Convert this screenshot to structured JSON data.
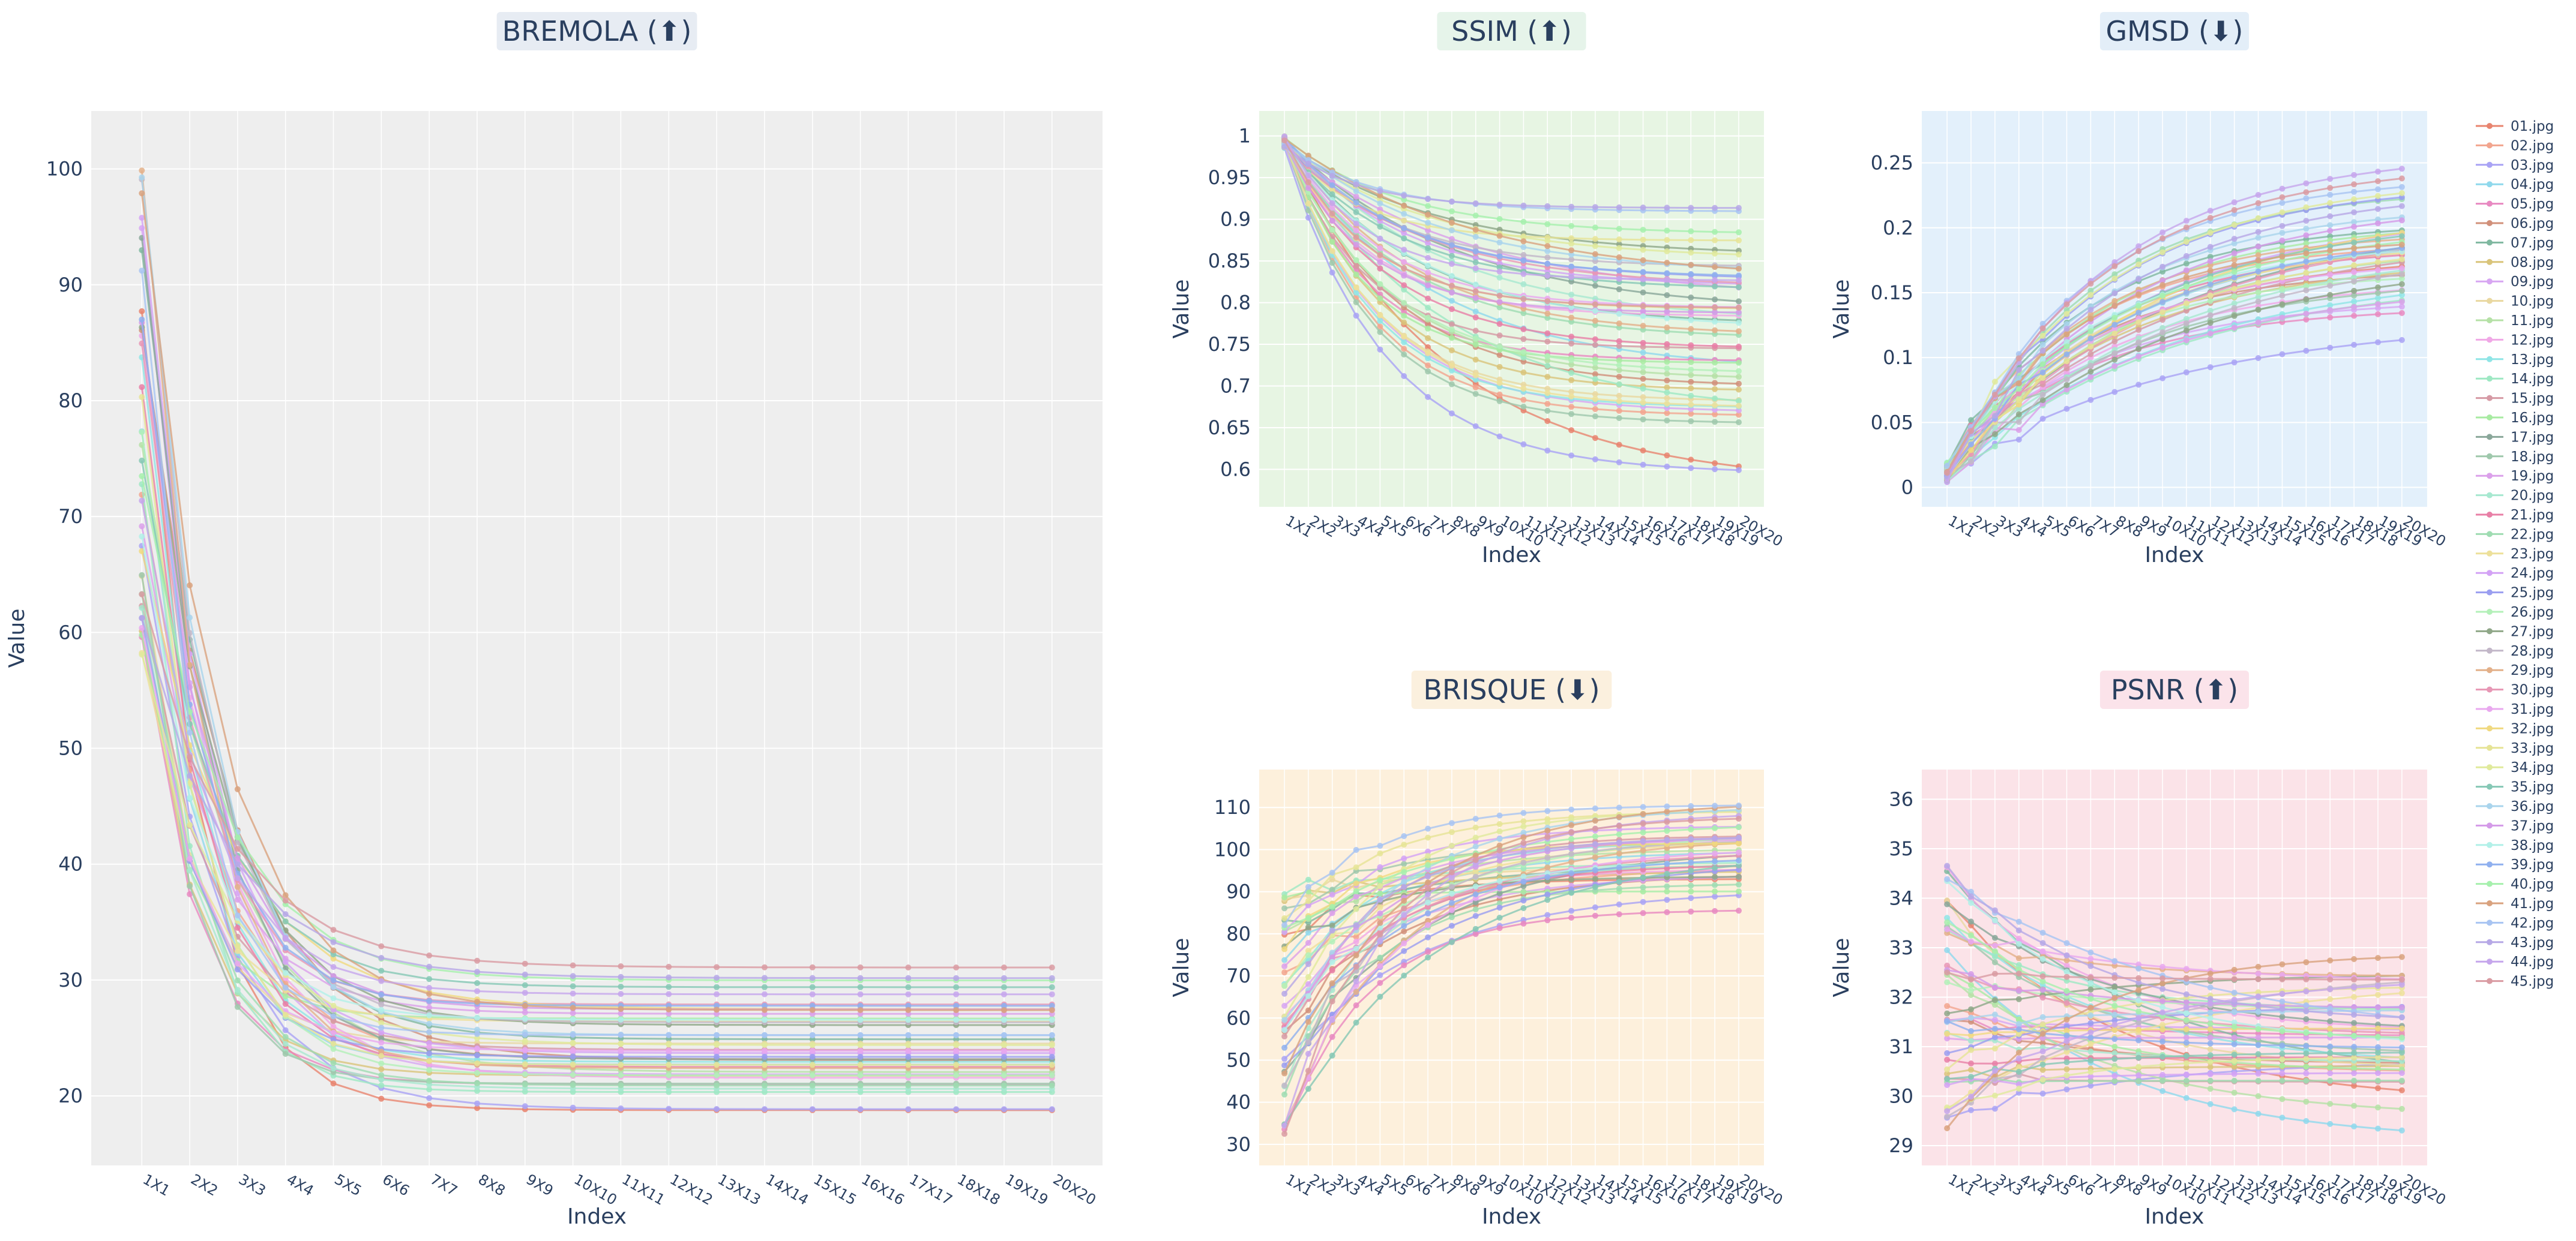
{
  "legend": {
    "items": [
      "01.jpg",
      "02.jpg",
      "03.jpg",
      "04.jpg",
      "05.jpg",
      "06.jpg",
      "07.jpg",
      "08.jpg",
      "09.jpg",
      "10.jpg",
      "11.jpg",
      "12.jpg",
      "13.jpg",
      "14.jpg",
      "15.jpg",
      "16.jpg",
      "17.jpg",
      "18.jpg",
      "19.jpg",
      "20.jpg",
      "21.jpg",
      "22.jpg",
      "23.jpg",
      "24.jpg",
      "25.jpg",
      "26.jpg",
      "27.jpg",
      "28.jpg",
      "29.jpg",
      "30.jpg",
      "31.jpg",
      "32.jpg",
      "33.jpg",
      "34.jpg",
      "35.jpg",
      "36.jpg",
      "37.jpg",
      "38.jpg",
      "39.jpg",
      "40.jpg",
      "41.jpg",
      "42.jpg",
      "43.jpg",
      "44.jpg",
      "45.jpg"
    ],
    "colors": [
      "#e8846f",
      "#f2a58e",
      "#a9a3f5",
      "#8fd8ec",
      "#e889c1",
      "#d1907a",
      "#7fb8a0",
      "#d9c47a",
      "#d7a6f2",
      "#e9d8a0",
      "#b5e1a6",
      "#f0a8e6",
      "#8fe5e6",
      "#9ee8c3",
      "#d69aa5",
      "#a8eba2",
      "#8aa79a",
      "#9fc8ac",
      "#dba0ea",
      "#a7e8d0",
      "#e87fa6",
      "#9fdcb2",
      "#ede09a",
      "#d3a2f5",
      "#9a9ef0",
      "#b3f0b8",
      "#8fa788",
      "#c2b7c8",
      "#e3b089",
      "#e797b5",
      "#e9a8ef",
      "#f0d980",
      "#e6e496",
      "#e0ea9c",
      "#86c8b5",
      "#a9d4ec",
      "#d49ae8",
      "#b2f0e8",
      "#8fb0ef",
      "#a6f0ad",
      "#d9a27e",
      "#a8c4f2",
      "#b6a8e6",
      "#c5a6ec",
      "#d99ba2"
    ]
  },
  "chart_data": [
    {
      "id": "bremola",
      "type": "line",
      "title": "BREMOLA (⬆)",
      "title_bg": "#e7ecf3",
      "plot_bg": "#eeeeee",
      "xlabel": "Index",
      "ylabel": "Value",
      "categories": [
        "1X1",
        "2X2",
        "3X3",
        "4X4",
        "5X5",
        "6X6",
        "7X7",
        "8X8",
        "9X9",
        "10X10",
        "11X11",
        "12X12",
        "13X13",
        "14X14",
        "15X15",
        "16X16",
        "17X17",
        "18X18",
        "19X19",
        "20X20"
      ],
      "ylim": [
        14,
        105
      ],
      "yticks": [
        20,
        30,
        40,
        50,
        60,
        70,
        80,
        90,
        100
      ],
      "series_shape": {
        "kind": "decay",
        "start_range": [
          57,
          100
        ],
        "end_range": [
          17.3,
          31.5
        ],
        "rate_range": [
          0.55,
          0.95
        ]
      }
    },
    {
      "id": "ssim",
      "type": "line",
      "title": "SSIM (⬆)",
      "title_bg": "#e6f4ea",
      "plot_bg": "#e7f5e3",
      "xlabel": "Index",
      "ylabel": "Value",
      "categories": [
        "1X1",
        "2X2",
        "3X3",
        "4X4",
        "5X5",
        "6X6",
        "7X7",
        "8X8",
        "9X9",
        "10X10",
        "11X11",
        "12X12",
        "13X13",
        "14X14",
        "15X15",
        "16X16",
        "17X17",
        "18X18",
        "19X19",
        "20X20"
      ],
      "ylim": [
        0.555,
        1.03
      ],
      "yticks": [
        0.6,
        0.65,
        0.7,
        0.75,
        0.8,
        0.85,
        0.9,
        0.95,
        1
      ],
      "series_shape": {
        "kind": "fall",
        "start_range": [
          0.985,
          1.0
        ],
        "end_range": [
          0.58,
          0.935
        ],
        "rate_range": [
          0.12,
          0.32
        ]
      }
    },
    {
      "id": "gmsd",
      "type": "line",
      "title": "GMSD (⬇)",
      "title_bg": "#e3eef8",
      "plot_bg": "#e3f0fb",
      "xlabel": "Index",
      "ylabel": "Value",
      "categories": [
        "1X1",
        "2X2",
        "3X3",
        "4X4",
        "5X5",
        "6X6",
        "7X7",
        "8X8",
        "9X9",
        "10X10",
        "11X11",
        "12X12",
        "13X13",
        "14X14",
        "15X15",
        "16X16",
        "17X17",
        "18X18",
        "19X19",
        "20X20"
      ],
      "ylim": [
        -0.015,
        0.29
      ],
      "yticks": [
        0,
        0.05,
        0.1,
        0.15,
        0.2,
        0.25
      ],
      "series_shape": {
        "kind": "rise",
        "start_range": [
          0.004,
          0.02
        ],
        "end_range": [
          0.12,
          0.27
        ],
        "rate_range": [
          0.1,
          0.18
        ]
      }
    },
    {
      "id": "brisque",
      "type": "line",
      "title": "BRISQUE (⬇)",
      "title_bg": "#fbf0de",
      "plot_bg": "#fdf0dc",
      "xlabel": "Index",
      "ylabel": "Value",
      "categories": [
        "1X1",
        "2X2",
        "3X3",
        "4X4",
        "5X5",
        "6X6",
        "7X7",
        "8X8",
        "9X9",
        "10X10",
        "11X11",
        "12X12",
        "13X13",
        "14X14",
        "15X15",
        "16X16",
        "17X17",
        "18X18",
        "19X19",
        "20X20"
      ],
      "ylim": [
        25,
        119
      ],
      "yticks": [
        30,
        40,
        50,
        60,
        70,
        80,
        90,
        100,
        110
      ],
      "series_shape": {
        "kind": "rise",
        "start_range": [
          31,
          90
        ],
        "end_range": [
          84,
          114
        ],
        "rate_range": [
          0.14,
          0.28
        ]
      }
    },
    {
      "id": "psnr",
      "type": "line",
      "title": "PSNR (⬆)",
      "title_bg": "#fbe3ea",
      "plot_bg": "#fbe3e8",
      "xlabel": "Index",
      "ylabel": "Value",
      "categories": [
        "1X1",
        "2X2",
        "3X3",
        "4X4",
        "5X5",
        "6X6",
        "7X7",
        "8X8",
        "9X9",
        "10X10",
        "11X11",
        "12X12",
        "13X13",
        "14X14",
        "15X15",
        "16X16",
        "17X17",
        "18X18",
        "19X19",
        "20X20"
      ],
      "ylim": [
        28.6,
        36.6
      ],
      "yticks": [
        29,
        30,
        31,
        32,
        33,
        34,
        35,
        36
      ],
      "series_shape": {
        "kind": "flat",
        "start_range": [
          29.1,
          34.7
        ],
        "end_range": [
          28.9,
          33.6
        ],
        "rate_range": [
          0.1,
          0.2
        ]
      }
    }
  ]
}
